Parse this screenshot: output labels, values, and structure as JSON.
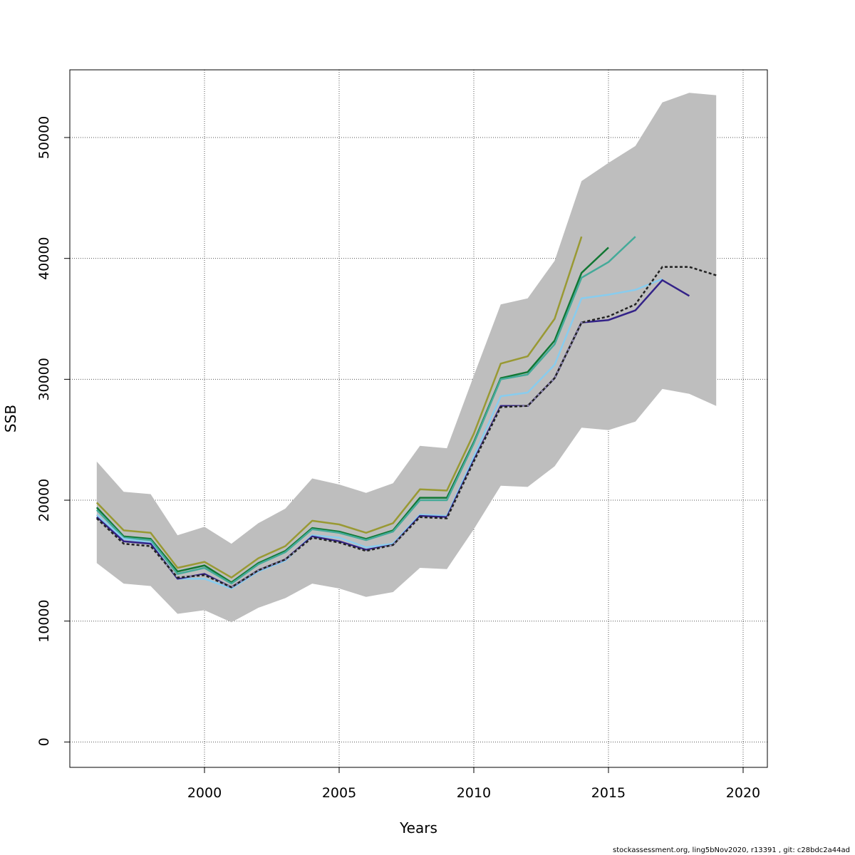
{
  "chart_data": {
    "type": "line",
    "title": "",
    "xlabel": "Years",
    "ylabel": "SSB",
    "xlim": [
      1995.0,
      2020.9
    ],
    "ylim": [
      -2100,
      55600
    ],
    "xticks": [
      2000,
      2005,
      2010,
      2015,
      2020
    ],
    "yticks": [
      0,
      10000,
      20000,
      30000,
      40000,
      50000
    ],
    "grid": true,
    "legend": "none",
    "band": {
      "x": [
        1996,
        1997,
        1998,
        1999,
        2000,
        2001,
        2002,
        2003,
        2004,
        2005,
        2006,
        2007,
        2008,
        2009,
        2010,
        2011,
        2012,
        2013,
        2014,
        2015,
        2016,
        2017,
        2018,
        2019
      ],
      "upper": [
        23200,
        20700,
        20500,
        17100,
        17800,
        16400,
        18100,
        19300,
        21800,
        21300,
        20600,
        21400,
        24500,
        24300,
        30300,
        36200,
        36700,
        39800,
        46400,
        47900,
        49300,
        52900,
        53700,
        53500
      ],
      "lower": [
        14800,
        13100,
        12900,
        10600,
        10900,
        9900,
        11100,
        11900,
        13100,
        12700,
        12000,
        12400,
        14400,
        14300,
        17600,
        21200,
        21100,
        22800,
        26000,
        25800,
        26500,
        29200,
        28800,
        27800
      ],
      "color": "#bebebe"
    },
    "series": [
      {
        "color": "#999933",
        "width": 2.5,
        "dashed": false,
        "x": [
          1996,
          1997,
          1998,
          1999,
          2000,
          2001,
          2002,
          2003,
          2004,
          2005,
          2006,
          2007,
          2008,
          2009,
          2010,
          2011,
          2012,
          2013,
          2014
        ],
        "values": [
          19800,
          17500,
          17300,
          14400,
          14900,
          13600,
          15200,
          16200,
          18300,
          18000,
          17300,
          18100,
          20900,
          20800,
          25500,
          31300,
          31900,
          35000,
          41800
        ]
      },
      {
        "color": "#117733",
        "width": 2.5,
        "dashed": false,
        "x": [
          1996,
          1997,
          1998,
          1999,
          2000,
          2001,
          2002,
          2003,
          2004,
          2005,
          2006,
          2007,
          2008,
          2009,
          2010,
          2011,
          2012,
          2013,
          2014,
          2015
        ],
        "values": [
          19400,
          17000,
          16800,
          14100,
          14600,
          13200,
          14800,
          15800,
          17700,
          17400,
          16800,
          17500,
          20200,
          20200,
          24800,
          30100,
          30600,
          33200,
          38800,
          40900
        ]
      },
      {
        "color": "#44aa99",
        "width": 2.5,
        "dashed": false,
        "x": [
          1996,
          1997,
          1998,
          1999,
          2000,
          2001,
          2002,
          2003,
          2004,
          2005,
          2006,
          2007,
          2008,
          2009,
          2010,
          2011,
          2012,
          2013,
          2014,
          2015,
          2016
        ],
        "values": [
          19200,
          16900,
          16700,
          13900,
          14400,
          13100,
          14700,
          15700,
          17600,
          17300,
          16700,
          17400,
          20000,
          20000,
          24700,
          30000,
          30400,
          32900,
          38400,
          39700,
          41800
        ]
      },
      {
        "color": "#88ccee",
        "width": 2.5,
        "dashed": false,
        "x": [
          1996,
          1997,
          1998,
          1999,
          2000,
          2001,
          2002,
          2003,
          2004,
          2005,
          2006,
          2007,
          2008,
          2009,
          2010,
          2011,
          2012,
          2013,
          2014,
          2015,
          2016,
          2017
        ],
        "values": [
          18800,
          16800,
          16500,
          13500,
          13500,
          12700,
          14100,
          15000,
          17100,
          16900,
          16100,
          16400,
          18800,
          18700,
          23600,
          28600,
          28900,
          31200,
          36700,
          37000,
          37400,
          38300
        ]
      },
      {
        "color": "#332288",
        "width": 2.5,
        "dashed": false,
        "x": [
          1996,
          1997,
          1998,
          1999,
          2000,
          2001,
          2002,
          2003,
          2004,
          2005,
          2006,
          2007,
          2008,
          2009,
          2010,
          2011,
          2012,
          2013,
          2014,
          2015,
          2016,
          2017,
          2018
        ],
        "values": [
          18600,
          16600,
          16400,
          13500,
          13900,
          12800,
          14200,
          15100,
          17000,
          16600,
          15900,
          16300,
          18700,
          18600,
          23300,
          27800,
          27800,
          30100,
          34700,
          34900,
          35700,
          38200,
          36900
        ]
      },
      {
        "color": "#222222",
        "width": 2.5,
        "dashed": true,
        "x": [
          1996,
          1997,
          1998,
          1999,
          2000,
          2001,
          2002,
          2003,
          2004,
          2005,
          2006,
          2007,
          2008,
          2009,
          2010,
          2011,
          2012,
          2013,
          2014,
          2015,
          2016,
          2017,
          2018,
          2019
        ],
        "values": [
          18500,
          16400,
          16200,
          13600,
          13800,
          12800,
          14200,
          15100,
          16900,
          16500,
          15800,
          16300,
          18600,
          18500,
          23200,
          27700,
          27800,
          30100,
          34700,
          35200,
          36200,
          39300,
          39300,
          38600
        ]
      }
    ]
  },
  "footer": "stockassessment.org, ling5bNov2020, r13391 , git: c28bdc2a44ad"
}
